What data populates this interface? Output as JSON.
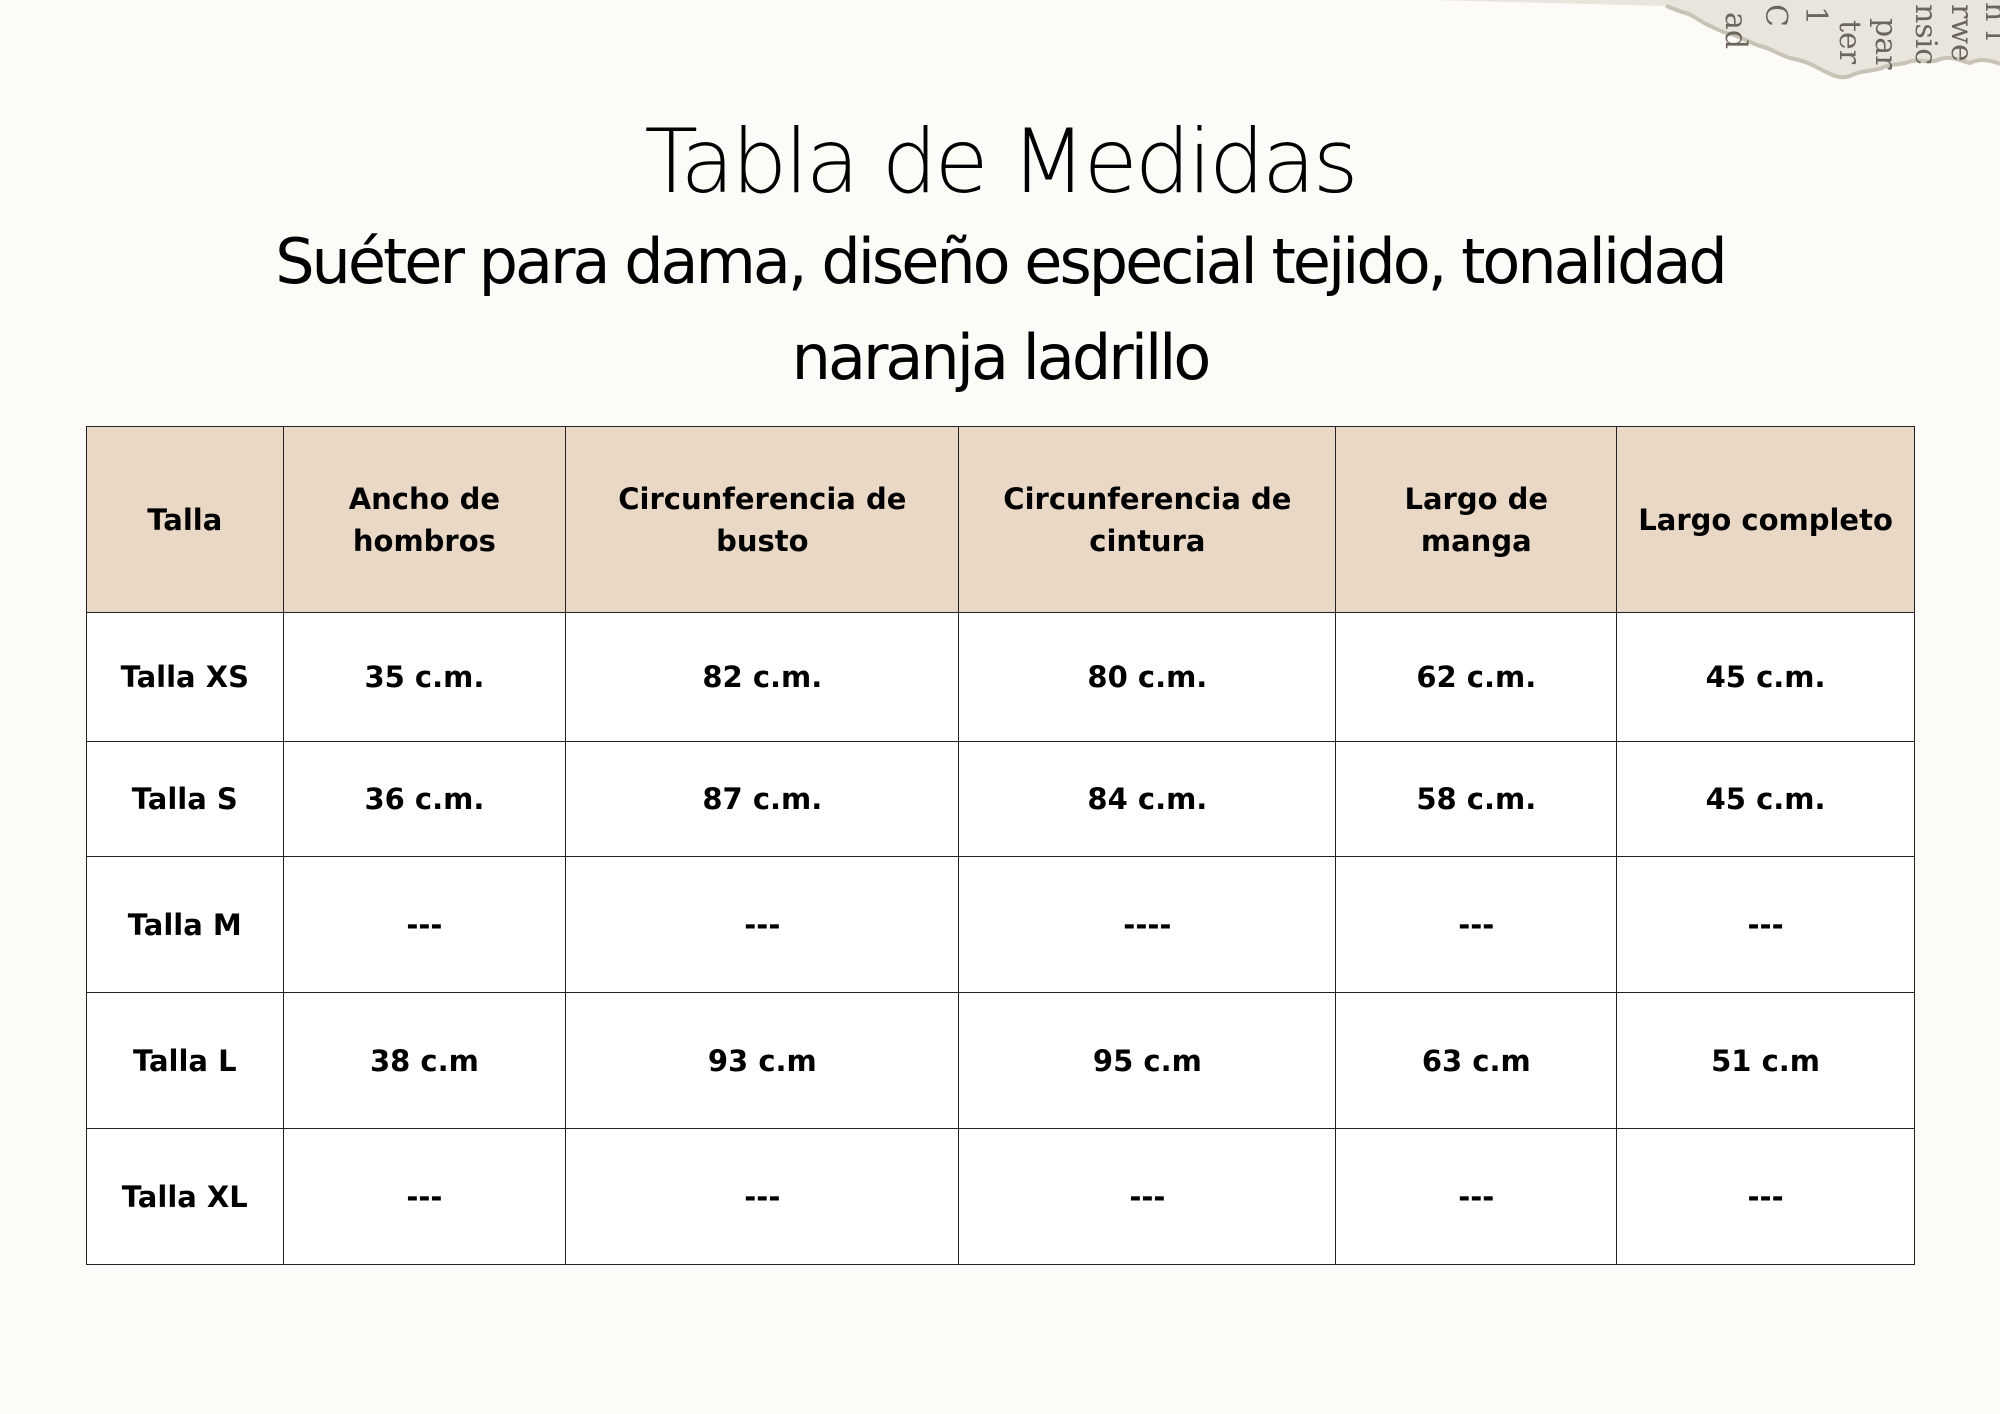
{
  "document": {
    "title": "Tabla de Medidas",
    "subtitle": "Suéter para dama, diseño especial tejido, tonalidad naranja ladrillo"
  },
  "table": {
    "headers": {
      "size": "Talla",
      "shoulder_width": "Ancho de hombros",
      "bust_circumference": "Circunferencia de busto",
      "waist_circumference": "Circunferencia de cintura",
      "sleeve_length": "Largo de manga",
      "full_length": "Largo completo"
    },
    "rows": [
      {
        "size": "Talla XS",
        "shoulder_width": "35 c.m.",
        "bust_circumference": "82 c.m.",
        "waist_circumference": "80 c.m.",
        "sleeve_length": "62 c.m.",
        "full_length": "45 c.m."
      },
      {
        "size": "Talla S",
        "shoulder_width": "36 c.m.",
        "bust_circumference": "87 c.m.",
        "waist_circumference": "84 c.m.",
        "sleeve_length": "58 c.m.",
        "full_length": "45 c.m."
      },
      {
        "size": "Talla M",
        "shoulder_width": "---",
        "bust_circumference": "---",
        "waist_circumference": "----",
        "sleeve_length": "---",
        "full_length": "---"
      },
      {
        "size": "Talla L",
        "shoulder_width": "38 c.m",
        "bust_circumference": "93 c.m",
        "waist_circumference": "95 c.m",
        "sleeve_length": "63 c.m",
        "full_length": "51 c.m"
      },
      {
        "size": "Talla XL",
        "shoulder_width": "---",
        "bust_circumference": "---",
        "waist_circumference": "---",
        "sleeve_length": "---",
        "full_length": "---"
      }
    ]
  },
  "colors": {
    "page_background": "#fdfbf7",
    "header_background": "#ead8c7",
    "cell_background": "#ffffff",
    "border": "#222222"
  },
  "decorations": {
    "corner_scrap": "torn-newspaper-scrap"
  }
}
